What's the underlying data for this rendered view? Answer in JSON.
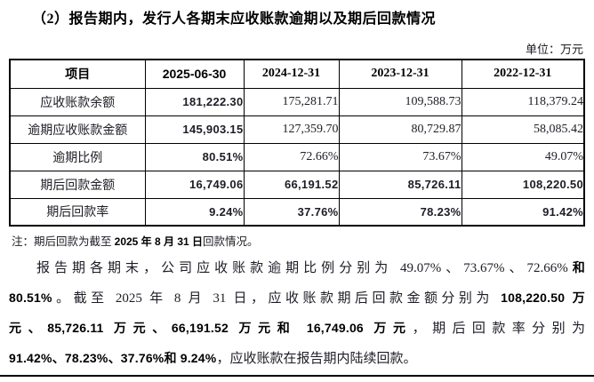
{
  "title": "（2）报告期内，发行人各期末应收账款逾期以及期后回款情况",
  "unit": "单位：万元",
  "table": {
    "headers": [
      {
        "text": "项目",
        "style": "serif"
      },
      {
        "text": "2025-06-30",
        "style": "sans"
      },
      {
        "text": "2024-12-31",
        "style": "serif"
      },
      {
        "text": "2023-12-31",
        "style": "serif"
      },
      {
        "text": "2022-12-31",
        "style": "serif"
      }
    ],
    "rows": [
      {
        "label": "应收账款余额",
        "values": [
          {
            "text": "181,222.30",
            "bold": true
          },
          {
            "text": "175,281.71",
            "bold": false
          },
          {
            "text": "109,588.73",
            "bold": false
          },
          {
            "text": "118,379.24",
            "bold": false
          }
        ]
      },
      {
        "label": "逾期应收账款金额",
        "values": [
          {
            "text": "145,903.15",
            "bold": true
          },
          {
            "text": "127,359.70",
            "bold": false
          },
          {
            "text": "80,729.87",
            "bold": false
          },
          {
            "text": "58,085.42",
            "bold": false
          }
        ]
      },
      {
        "label": "逾期比例",
        "values": [
          {
            "text": "80.51%",
            "bold": true
          },
          {
            "text": "72.66%",
            "bold": false
          },
          {
            "text": "73.67%",
            "bold": false
          },
          {
            "text": "49.07%",
            "bold": false
          }
        ]
      },
      {
        "label": "期后回款金额",
        "values": [
          {
            "text": "16,749.06",
            "bold": true
          },
          {
            "text": "66,191.52",
            "bold": true
          },
          {
            "text": "85,726.11",
            "bold": true
          },
          {
            "text": "108,220.50",
            "bold": true
          }
        ]
      },
      {
        "label": "期后回款率",
        "values": [
          {
            "text": "9.24%",
            "bold": true
          },
          {
            "text": "37.76%",
            "bold": true
          },
          {
            "text": "78.23%",
            "bold": true
          },
          {
            "text": "91.42%",
            "bold": true
          }
        ]
      }
    ]
  },
  "note": {
    "segments": [
      {
        "text": "注：期后回款为截至 ",
        "bold": false
      },
      {
        "text": "2025 年 8 月 31 日",
        "bold": true
      },
      {
        "text": "回款情况。",
        "bold": false
      }
    ]
  },
  "paragraph": {
    "lines": [
      {
        "indent": true,
        "justify": true,
        "segments": [
          {
            "text": "报告期各期末，公司应收账款逾期比例分别为 49.07%、73.67%、72.66%",
            "bold": false
          },
          {
            "text": "和",
            "bold": true
          }
        ]
      },
      {
        "indent": false,
        "justify": true,
        "segments": [
          {
            "text": "80.51%",
            "bold": true
          },
          {
            "text": "。截至 2025 年 8 月 31 日，应收账款期后回款金额分别为 ",
            "bold": false
          },
          {
            "text": "108,220.50 万",
            "bold": true
          }
        ]
      },
      {
        "indent": false,
        "justify": true,
        "segments": [
          {
            "text": "元、85,726.11 万元、66,191.52 万元和 16,749.06 万元",
            "bold": true
          },
          {
            "text": "，期后回款率分别为",
            "bold": false
          }
        ]
      },
      {
        "indent": false,
        "justify": false,
        "segments": [
          {
            "text": "91.42%、78.23%、37.76%和 9.24%",
            "bold": true
          },
          {
            "text": "，应收账款在报告期内陆续回款。",
            "bold": false
          }
        ]
      }
    ]
  }
}
